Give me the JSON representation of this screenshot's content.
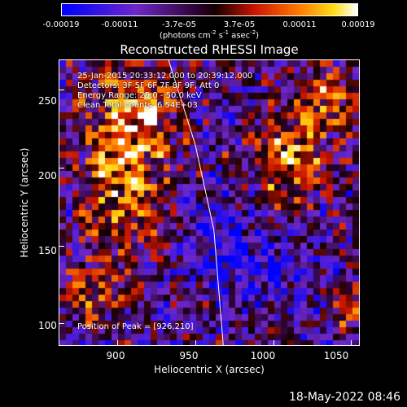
{
  "colorbar": {
    "ticks": [
      "-0.00019",
      "-0.00011",
      "-3.7e-05",
      "3.7e-05",
      "0.00011",
      "0.00019"
    ],
    "units_prefix": "(photons cm",
    "units_exp1": "-2",
    "units_mid": " s",
    "units_exp2": "-1",
    "units_mid2": " asec",
    "units_exp3": "-2",
    "units_suffix": ")"
  },
  "title": "Reconstructed RHESSI Image",
  "info": {
    "line1": "25-Jan-2015 20:33:12.000 to 20:39:12.000",
    "line2": "Detectors: 3F 5F 6F 7F 8F 9F, Att 0",
    "line3": "Energy Range: 25.0 - 50.0 keV",
    "line4": "Clean     Total counts: 6.54E+03"
  },
  "peak": "Position of Peak = [926,210]",
  "xlabel": "Heliocentric X (arcsec)",
  "ylabel": "Heliocentric Y (arcsec)",
  "footer_date": "18-May-2022 08:46",
  "chart_data": {
    "type": "heatmap",
    "title": "Reconstructed RHESSI Image",
    "xlabel": "Heliocentric X (arcsec)",
    "ylabel": "Heliocentric Y (arcsec)",
    "xlim": [
      863,
      1055
    ],
    "ylim": [
      86,
      269
    ],
    "x_ticks": [
      900,
      950,
      1000,
      1050
    ],
    "y_ticks": [
      100,
      150,
      200,
      250
    ],
    "x_tick_labels": [
      "900",
      "950",
      "1000",
      "1050"
    ],
    "y_tick_labels": [
      "100",
      "150",
      "200",
      "250"
    ],
    "colorbar_range": [
      -0.00019,
      0.00019
    ],
    "peak_position": [
      926,
      210
    ],
    "limb_curve": [
      [
        933,
        269
      ],
      [
        950,
        215
      ],
      [
        962,
        160
      ],
      [
        968,
        86
      ]
    ]
  }
}
